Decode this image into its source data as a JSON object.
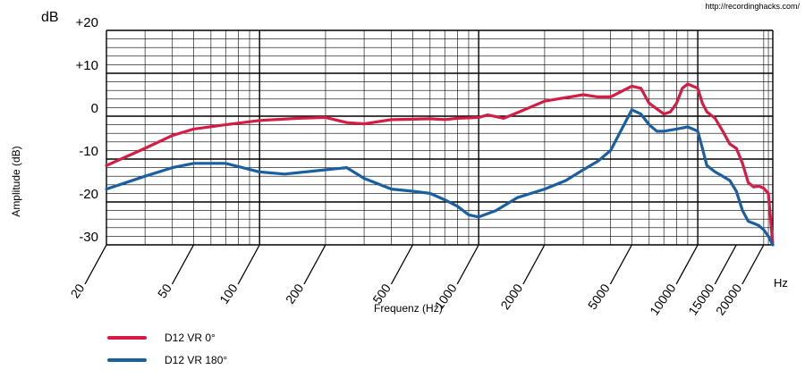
{
  "source_url": "http://recordinghacks.com/",
  "chart_data": {
    "type": "line",
    "title": "",
    "xlabel": "Frequenz (Hz)",
    "ylabel": "Amplitude (dB)",
    "y_unit": "dB",
    "x_unit": "Hz",
    "x_scale": "log",
    "xlim": [
      20,
      22000
    ],
    "ylim": [
      -30,
      20
    ],
    "grid": true,
    "legend_position": "bottom-left",
    "x_ticks": [
      {
        "value": 20,
        "label": "20"
      },
      {
        "value": 50,
        "label": "50"
      },
      {
        "value": 100,
        "label": "100"
      },
      {
        "value": 200,
        "label": "200"
      },
      {
        "value": 500,
        "label": "500"
      },
      {
        "value": 1000,
        "label": "1000"
      },
      {
        "value": 2000,
        "label": "2000"
      },
      {
        "value": 5000,
        "label": "5000"
      },
      {
        "value": 10000,
        "label": "10000"
      },
      {
        "value": 15000,
        "label": "15000"
      },
      {
        "value": 20000,
        "label": "20000"
      }
    ],
    "y_ticks": [
      {
        "value": 20,
        "label": "+20"
      },
      {
        "value": 10,
        "label": "+10"
      },
      {
        "value": 0,
        "label": "0"
      },
      {
        "value": -10,
        "label": "-10"
      },
      {
        "value": -20,
        "label": "-20"
      },
      {
        "value": -30,
        "label": "-30"
      }
    ],
    "series": [
      {
        "name": "D12 VR 0°",
        "color": "#d41c44",
        "points": [
          [
            20,
            -11.5
          ],
          [
            30,
            -7.5
          ],
          [
            40,
            -4.5
          ],
          [
            50,
            -3
          ],
          [
            70,
            -2
          ],
          [
            100,
            -1
          ],
          [
            150,
            -0.5
          ],
          [
            200,
            -0.3
          ],
          [
            250,
            -1.5
          ],
          [
            300,
            -1.8
          ],
          [
            400,
            -0.8
          ],
          [
            500,
            -0.7
          ],
          [
            600,
            -0.6
          ],
          [
            700,
            -0.8
          ],
          [
            800,
            -0.5
          ],
          [
            1000,
            -0.3
          ],
          [
            1100,
            0.3
          ],
          [
            1300,
            -0.5
          ],
          [
            1500,
            0.8
          ],
          [
            2000,
            3.5
          ],
          [
            3000,
            5
          ],
          [
            3500,
            4.5
          ],
          [
            4000,
            4.5
          ],
          [
            5000,
            7
          ],
          [
            5500,
            6.5
          ],
          [
            6000,
            3
          ],
          [
            7000,
            0.5
          ],
          [
            7500,
            1
          ],
          [
            8000,
            3
          ],
          [
            8500,
            6.5
          ],
          [
            9000,
            7.5
          ],
          [
            10000,
            6.5
          ],
          [
            10500,
            3
          ],
          [
            11000,
            1
          ],
          [
            12000,
            -0.5
          ],
          [
            13000,
            -3.5
          ],
          [
            14000,
            -6.5
          ],
          [
            15000,
            -7.5
          ],
          [
            16000,
            -11
          ],
          [
            17000,
            -15.5
          ],
          [
            18000,
            -16.5
          ],
          [
            19000,
            -16.3
          ],
          [
            20000,
            -16.8
          ],
          [
            21000,
            -18
          ],
          [
            22000,
            -30
          ]
        ]
      },
      {
        "name": "D12 VR 180°",
        "color": "#1a5fa0",
        "points": [
          [
            20,
            -17
          ],
          [
            30,
            -14
          ],
          [
            40,
            -12
          ],
          [
            50,
            -11
          ],
          [
            70,
            -11
          ],
          [
            100,
            -13
          ],
          [
            130,
            -13.5
          ],
          [
            200,
            -12.5
          ],
          [
            250,
            -12
          ],
          [
            300,
            -14.5
          ],
          [
            400,
            -17
          ],
          [
            500,
            -17.5
          ],
          [
            600,
            -18
          ],
          [
            700,
            -19.5
          ],
          [
            800,
            -21
          ],
          [
            900,
            -23
          ],
          [
            1000,
            -23.5
          ],
          [
            1200,
            -22
          ],
          [
            1500,
            -19
          ],
          [
            2000,
            -17
          ],
          [
            2500,
            -15
          ],
          [
            3000,
            -12.5
          ],
          [
            3500,
            -10.5
          ],
          [
            4000,
            -8
          ],
          [
            4500,
            -3
          ],
          [
            5000,
            1.5
          ],
          [
            5500,
            0.5
          ],
          [
            6000,
            -2
          ],
          [
            6500,
            -3.5
          ],
          [
            7000,
            -3.5
          ],
          [
            8000,
            -3
          ],
          [
            9000,
            -2.5
          ],
          [
            10000,
            -3.5
          ],
          [
            10500,
            -7.5
          ],
          [
            11000,
            -11.5
          ],
          [
            12000,
            -13
          ],
          [
            13000,
            -14
          ],
          [
            14000,
            -15
          ],
          [
            15000,
            -17.5
          ],
          [
            16000,
            -22
          ],
          [
            17000,
            -24.5
          ],
          [
            18000,
            -25
          ],
          [
            19000,
            -25.5
          ],
          [
            20000,
            -26.5
          ],
          [
            21000,
            -28
          ],
          [
            22000,
            -30
          ]
        ]
      }
    ]
  }
}
